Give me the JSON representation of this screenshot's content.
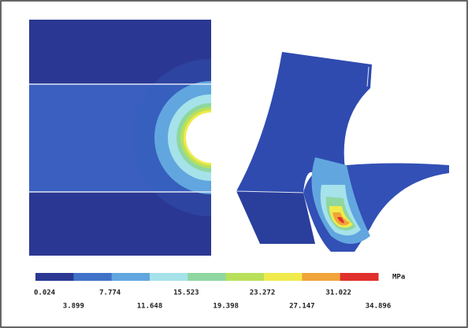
{
  "legend": {
    "unit": "MPa",
    "labels": [
      "0.024",
      "3.899",
      "7.774",
      "11.648",
      "15.523",
      "19.398",
      "23.272",
      "27.147",
      "31.022",
      "34.896"
    ],
    "colors": [
      "#2b3893",
      "#3f72c8",
      "#62a6df",
      "#a6e2ea",
      "#8ed7a0",
      "#b9e05a",
      "#f0ea4a",
      "#f0a43a",
      "#e0302c"
    ]
  }
}
